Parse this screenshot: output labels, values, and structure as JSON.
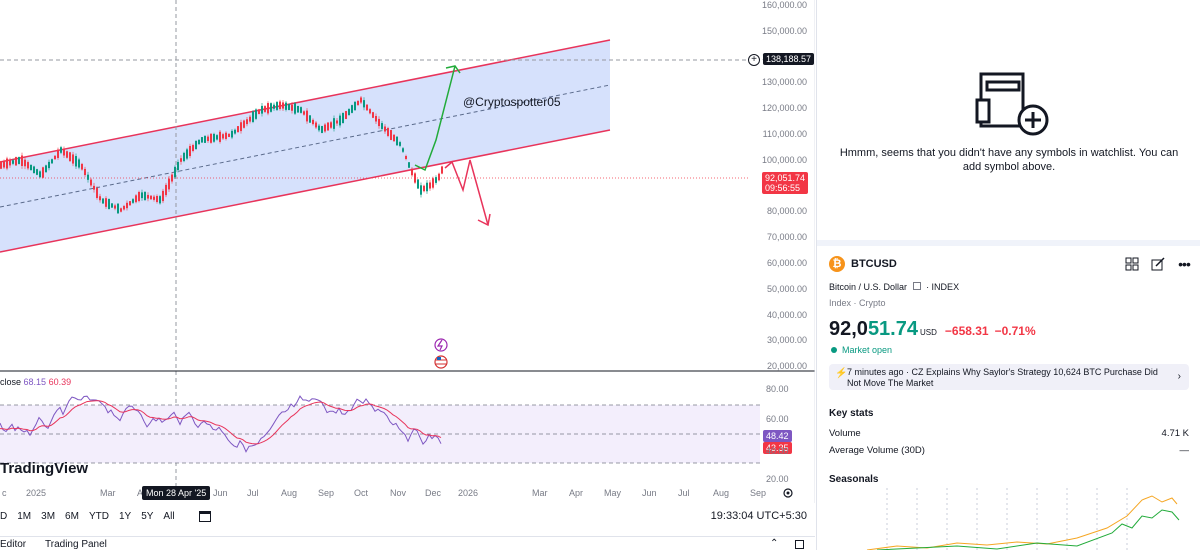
{
  "chart": {
    "price_axis": [
      "160,000.00",
      "150,000.00",
      "140,000.00",
      "130,000.00",
      "120,000.00",
      "110,000.00",
      "100,000.00",
      "90,000.00",
      "80,000.00",
      "70,000.00",
      "60,000.00",
      "50,000.00",
      "40,000.00",
      "30,000.00",
      "20,000.00"
    ],
    "crosshair_price": "138,188.57",
    "current_price": "92,051.74",
    "countdown": "09:56:55",
    "annotation": "@Cryptospotter05",
    "watermark": "TradingView",
    "rsi_legend_label": "close",
    "rsi_value_1": "68.15",
    "rsi_value_2": "60.39",
    "rsi_axis": [
      "80.00",
      "60.00",
      "40.00",
      "20.00"
    ],
    "rsi_tag_1": "48.42",
    "rsi_tag_2": "43.35",
    "x_labels": [
      "c",
      "2025",
      "Mar",
      "A",
      "Jun",
      "Jul",
      "Aug",
      "Sep",
      "Oct",
      "Nov",
      "Dec",
      "2026",
      "Mar",
      "Apr",
      "May",
      "Jun",
      "Jul",
      "Aug",
      "Sep"
    ],
    "crosshair_date": "Mon 28 Apr '25",
    "colors": {
      "channel_fill": "#cfdcfb",
      "channel_line": "#e8345b",
      "up": "#089981",
      "down": "#f23645",
      "arrow_up": "#22ab3a",
      "rsi": "#7e57c2",
      "rsi_ma": "#e8345b"
    }
  },
  "bottom_bar": {
    "ranges": [
      "D",
      "1M",
      "3M",
      "6M",
      "YTD",
      "1Y",
      "5Y",
      "All"
    ],
    "clock": "19:33:04 UTC+5:30"
  },
  "panel_tabs": [
    "Editor",
    "Trading Panel"
  ],
  "watchlist": {
    "empty_message": "Hmmm, seems that you didn't have any symbols in watchlist. You can add symbol above."
  },
  "symbol": {
    "ticker": "BTCUSD",
    "description": "Bitcoin / U.S. Dollar",
    "exchange": "· INDEX",
    "category_1": "Index",
    "category_2": "Crypto",
    "price_main": "92,0",
    "price_tail": "51.74",
    "currency": "USD",
    "change": "−658.31",
    "change_pct": "−0.71%",
    "market_status": "Market open",
    "news_time": "7 minutes ago",
    "news_text": "CZ Explains Why Saylor's Strategy 10,624 BTC Purchase Did Not Move The Market"
  },
  "key_stats": {
    "title": "Key stats",
    "volume_label": "Volume",
    "volume_value": "4.71 K",
    "avg_volume_label": "Average Volume (30D)",
    "avg_volume_value": "—"
  },
  "seasonals": {
    "title": "Seasonals"
  }
}
